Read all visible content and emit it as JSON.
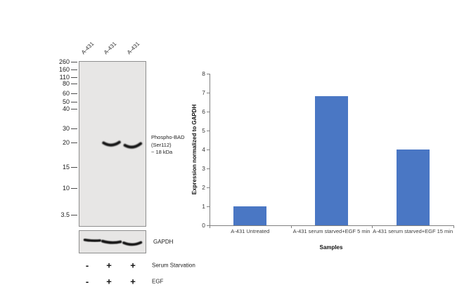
{
  "blot": {
    "lane_labels": [
      "A-431",
      "A-431",
      "A-431"
    ],
    "mw_markers": [
      "260",
      "160",
      "110",
      "80",
      "60",
      "50",
      "40",
      "30",
      "20",
      "15",
      "10",
      "3.5"
    ],
    "annotation_lines": [
      "Phospho-BAD",
      "(Ser112)",
      "~ 18 kDa"
    ],
    "loading_control_label": "GAPDH",
    "treatment_rows": [
      {
        "label": "Serum Starvation",
        "values": [
          "-",
          "+",
          "+"
        ]
      },
      {
        "label": "EGF",
        "values": [
          "-",
          "+",
          "+"
        ]
      }
    ]
  },
  "chart_data": {
    "type": "bar",
    "categories": [
      "A-431 Untreated",
      "A-431 serum starved+EGF 5 min",
      "A-431 serum starved+EGF 15 min"
    ],
    "values": [
      1,
      6.8,
      4
    ],
    "xlabel": "Samples",
    "ylabel": "Expression normalized to GAPDH",
    "ylim": [
      0,
      8
    ],
    "yticks": [
      0,
      1,
      2,
      3,
      4,
      5,
      6,
      7,
      8
    ],
    "bar_color": "#4A77C4",
    "grid": false,
    "legend": false
  }
}
